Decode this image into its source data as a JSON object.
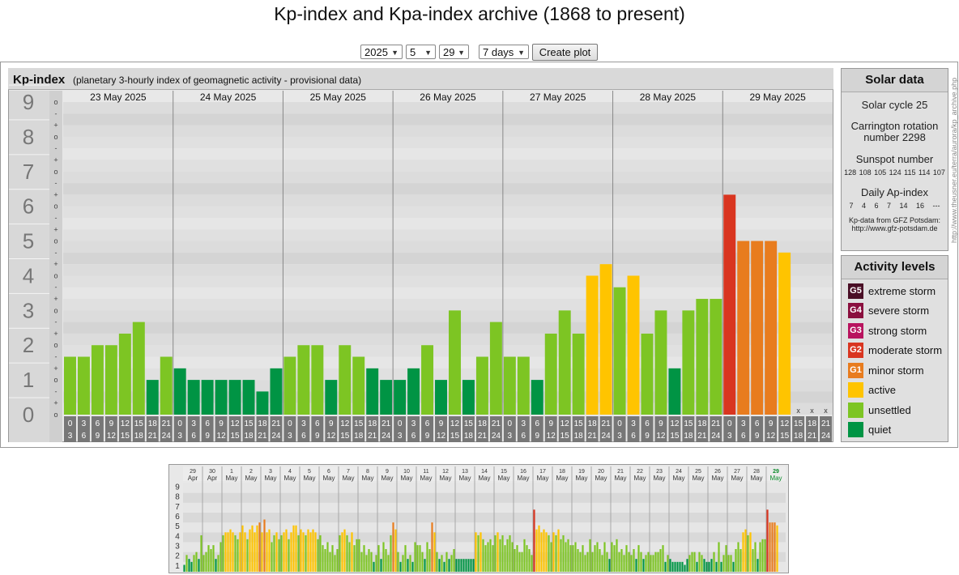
{
  "title": "Kp-index and Kpa-index archive (1868 to present)",
  "controls": {
    "year": "2025",
    "month": "5",
    "day": "29",
    "range": "7 days",
    "button": "Create plot"
  },
  "kp_panel": {
    "name": "Kp-index",
    "description": "(planetary 3-hourly index of geomagnetic activity - provisional data)"
  },
  "chart_data": {
    "type": "bar",
    "title": "Kp-index",
    "ylim": [
      0,
      9
    ],
    "y_major_ticks": [
      "0",
      "1",
      "2",
      "3",
      "4",
      "5",
      "6",
      "7",
      "8",
      "9"
    ],
    "y_minor_ticks": [
      "+",
      "o",
      "-"
    ],
    "days": [
      "23 May 2025",
      "24 May 2025",
      "25 May 2025",
      "26 May 2025",
      "27 May 2025",
      "28 May 2025",
      "29 May 2025"
    ],
    "interval_labels_top": [
      "0",
      "3",
      "6",
      "9",
      "12",
      "15",
      "18",
      "21"
    ],
    "interval_labels_bottom": [
      "3",
      "6",
      "9",
      "12",
      "15",
      "18",
      "21",
      "24"
    ],
    "values": [
      [
        1.667,
        1.667,
        2.0,
        2.0,
        2.333,
        2.667,
        1.0,
        1.667
      ],
      [
        1.333,
        1.0,
        1.0,
        1.0,
        1.0,
        1.0,
        0.667,
        1.333
      ],
      [
        1.667,
        2.0,
        2.0,
        1.0,
        2.0,
        1.667,
        1.333,
        1.0
      ],
      [
        1.0,
        1.333,
        2.0,
        1.0,
        3.0,
        1.0,
        1.667,
        2.667
      ],
      [
        1.667,
        1.667,
        1.0,
        2.333,
        3.0,
        2.333,
        4.0,
        4.333
      ],
      [
        3.667,
        4.0,
        2.333,
        3.0,
        1.333,
        3.0,
        3.333,
        3.333
      ],
      [
        6.333,
        5.0,
        5.0,
        5.0,
        4.667,
        null,
        null,
        null
      ]
    ],
    "missing_marker": "x",
    "colors": {
      "quiet": "#009444",
      "unsettled": "#7dc523",
      "active": "#ffc400",
      "minor": "#e87c1e",
      "moderate": "#d93520"
    }
  },
  "solar": {
    "title": "Solar data",
    "cycle": "Solar cycle 25",
    "carrington": "Carrington rotation number 2298",
    "sunspot_label": "Sunspot number",
    "sunspot_values": "128 108 105 124 115 114 107",
    "ap_label": "Daily Ap-index",
    "ap_values": "7 4 6 7 14 16 ---",
    "source_line1": "Kp-data from GFZ Potsdam:",
    "source_line2": "http://www.gfz-potsdam.de"
  },
  "activity": {
    "title": "Activity levels",
    "items": [
      {
        "code": "G5",
        "label": "extreme storm",
        "color": "#4a0f26"
      },
      {
        "code": "G4",
        "label": "severe storm",
        "color": "#8a0f3e"
      },
      {
        "code": "G3",
        "label": "strong storm",
        "color": "#b8135e"
      },
      {
        "code": "G2",
        "label": "moderate storm",
        "color": "#d93520"
      },
      {
        "code": "G1",
        "label": "minor storm",
        "color": "#e87c1e"
      },
      {
        "code": "",
        "label": "active",
        "color": "#ffc400"
      },
      {
        "code": "",
        "label": "unsettled",
        "color": "#7dc523"
      },
      {
        "code": "",
        "label": "quiet",
        "color": "#009444"
      }
    ]
  },
  "credit": "http://www.theusner.eu/terra/aurora/kp_archive.php",
  "overview": {
    "y_ticks": [
      "1",
      "2",
      "3",
      "4",
      "5",
      "6",
      "7",
      "8",
      "9"
    ],
    "days": [
      {
        "d": "29",
        "m": "Apr"
      },
      {
        "d": "30",
        "m": "Apr"
      },
      {
        "d": "1",
        "m": "May"
      },
      {
        "d": "2",
        "m": "May"
      },
      {
        "d": "3",
        "m": "May"
      },
      {
        "d": "4",
        "m": "May"
      },
      {
        "d": "5",
        "m": "May"
      },
      {
        "d": "6",
        "m": "May"
      },
      {
        "d": "7",
        "m": "May"
      },
      {
        "d": "8",
        "m": "May"
      },
      {
        "d": "9",
        "m": "May"
      },
      {
        "d": "10",
        "m": "May"
      },
      {
        "d": "11",
        "m": "May"
      },
      {
        "d": "12",
        "m": "May"
      },
      {
        "d": "13",
        "m": "May"
      },
      {
        "d": "14",
        "m": "May"
      },
      {
        "d": "15",
        "m": "May"
      },
      {
        "d": "16",
        "m": "May"
      },
      {
        "d": "17",
        "m": "May"
      },
      {
        "d": "18",
        "m": "May"
      },
      {
        "d": "19",
        "m": "May"
      },
      {
        "d": "20",
        "m": "May"
      },
      {
        "d": "21",
        "m": "May"
      },
      {
        "d": "22",
        "m": "May"
      },
      {
        "d": "23",
        "m": "May"
      },
      {
        "d": "24",
        "m": "May"
      },
      {
        "d": "25",
        "m": "May"
      },
      {
        "d": "26",
        "m": "May"
      },
      {
        "d": "27",
        "m": "May"
      },
      {
        "d": "28",
        "m": "May"
      },
      {
        "d": "29",
        "m": "May"
      }
    ],
    "values": [
      [
        0.7,
        1.7,
        1.3,
        1.0,
        1.7,
        2.0,
        1.3,
        3.7
      ],
      [
        1.7,
        2.0,
        2.7,
        2.3,
        2.7,
        1.3,
        1.7,
        3.0
      ],
      [
        3.7,
        4.0,
        4.0,
        4.3,
        4.0,
        3.7,
        3.3,
        4.0
      ],
      [
        4.7,
        4.0,
        3.3,
        4.3,
        4.7,
        4.0,
        4.7,
        5.0
      ],
      [
        4.0,
        5.3,
        4.0,
        4.3,
        3.0,
        3.7,
        4.0,
        3.3
      ],
      [
        3.7,
        4.0,
        4.3,
        3.3,
        4.0,
        4.7,
        4.7,
        3.7
      ],
      [
        4.3,
        4.0,
        3.7,
        4.3,
        4.0,
        4.3,
        4.0,
        3.3
      ],
      [
        3.7,
        2.7,
        2.3,
        3.0,
        2.0,
        2.7,
        1.7,
        2.3
      ],
      [
        3.7,
        4.0,
        4.3,
        3.7,
        3.0,
        4.0,
        2.7,
        3.3
      ],
      [
        3.3,
        2.0,
        2.7,
        1.7,
        2.3,
        2.0,
        1.0,
        1.7
      ],
      [
        2.7,
        1.3,
        3.0,
        2.3,
        1.7,
        3.7,
        5.0,
        4.3
      ],
      [
        2.0,
        1.0,
        1.7,
        2.7,
        1.3,
        1.7,
        1.0,
        3.0
      ],
      [
        2.7,
        2.7,
        2.0,
        1.3,
        3.0,
        2.3,
        5.0,
        4.0
      ],
      [
        2.0,
        1.3,
        1.7,
        1.0,
        2.0,
        1.3,
        1.7,
        2.3
      ],
      [
        1.3,
        1.3,
        1.3,
        1.3,
        1.3,
        1.3,
        1.3,
        1.3
      ],
      [
        4.0,
        3.7,
        4.0,
        3.3,
        2.7,
        3.0,
        3.3,
        2.7
      ],
      [
        3.7,
        4.0,
        3.3,
        3.7,
        2.7,
        3.3,
        3.7,
        3.0
      ],
      [
        2.3,
        2.7,
        2.0,
        2.0,
        3.3,
        2.7,
        2.3,
        1.7
      ],
      [
        6.3,
        4.3,
        4.7,
        4.0,
        4.3,
        4.0,
        3.7,
        3.0
      ],
      [
        4.0,
        3.7,
        4.3,
        3.3,
        3.7,
        3.0,
        3.3,
        2.7
      ],
      [
        2.7,
        3.0,
        2.3,
        2.0,
        2.7,
        1.7,
        2.0,
        3.3
      ],
      [
        2.0,
        2.7,
        3.0,
        2.3,
        1.7,
        3.0,
        2.0,
        1.3
      ],
      [
        3.0,
        2.7,
        3.3,
        2.0,
        2.3,
        1.7,
        2.7,
        2.0
      ],
      [
        1.7,
        2.3,
        1.3,
        2.7,
        2.0,
        1.3,
        1.7,
        2.0
      ],
      [
        1.7,
        1.7,
        2.0,
        2.0,
        2.3,
        2.7,
        1.0,
        1.7
      ],
      [
        1.3,
        1.0,
        1.0,
        1.0,
        1.0,
        1.0,
        0.7,
        1.3
      ],
      [
        1.7,
        2.0,
        2.0,
        1.0,
        2.0,
        1.7,
        1.3,
        1.0
      ],
      [
        1.0,
        1.3,
        2.0,
        1.0,
        3.0,
        1.0,
        1.7,
        2.7
      ],
      [
        1.7,
        1.7,
        1.0,
        2.3,
        3.0,
        2.3,
        4.0,
        4.3
      ],
      [
        3.7,
        4.0,
        2.3,
        3.0,
        1.3,
        3.0,
        3.3,
        3.3
      ],
      [
        6.3,
        5.0,
        5.0,
        5.0,
        4.7
      ]
    ]
  }
}
